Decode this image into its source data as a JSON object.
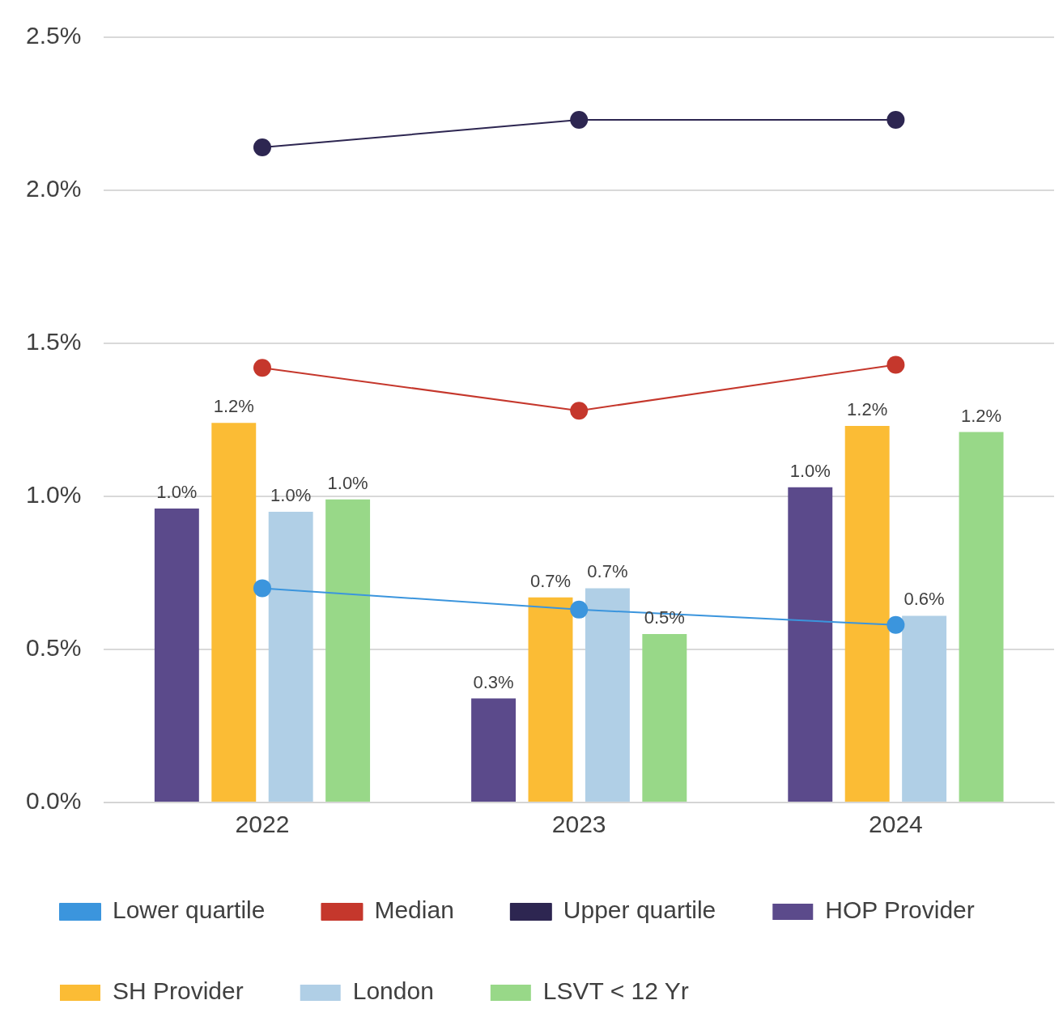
{
  "chart_data": {
    "type": "bar",
    "categories": [
      "2022",
      "2023",
      "2024"
    ],
    "series": [
      {
        "name": "HOP Provider",
        "color": "#5b4a8b",
        "values": [
          0.96,
          0.34,
          1.03
        ],
        "value_labels": [
          "1.0%",
          "0.3%",
          "1.0%"
        ]
      },
      {
        "name": "SH Provider",
        "color": "#fbbc35",
        "values": [
          1.24,
          0.67,
          1.23
        ],
        "value_labels": [
          "1.2%",
          "0.7%",
          "1.2%"
        ]
      },
      {
        "name": "London",
        "color": "#b0cfe6",
        "values": [
          0.95,
          0.7,
          0.61
        ],
        "value_labels": [
          "1.0%",
          "0.7%",
          "0.6%"
        ]
      },
      {
        "name": "LSVT < 12 Yr",
        "color": "#98d888",
        "values": [
          0.99,
          0.55,
          1.21
        ],
        "value_labels": [
          "1.0%",
          "0.5%",
          "1.2%"
        ]
      },
      {
        "name": "Lower quartile",
        "type": "line",
        "color": "#3b95dd",
        "values": [
          0.7,
          0.63,
          0.58
        ]
      },
      {
        "name": "Median",
        "type": "line",
        "color": "#c5372c",
        "values": [
          1.42,
          1.28,
          1.43
        ]
      },
      {
        "name": "Upper quartile",
        "type": "line",
        "color": "#2d2651",
        "values": [
          2.14,
          2.23,
          2.23
        ]
      }
    ],
    "ylim": [
      0,
      2.5
    ],
    "yticks": [
      {
        "value": 0,
        "label": "0.0%"
      },
      {
        "value": 0.5,
        "label": "0.5%"
      },
      {
        "value": 1,
        "label": "1.0%"
      },
      {
        "value": 1.5,
        "label": "1.5%"
      },
      {
        "value": 2,
        "label": "2.0%"
      },
      {
        "value": 2.5,
        "label": "2.5%"
      }
    ],
    "grid": "y",
    "legend": "bottom",
    "marker": "circle",
    "line_style": "solid"
  }
}
